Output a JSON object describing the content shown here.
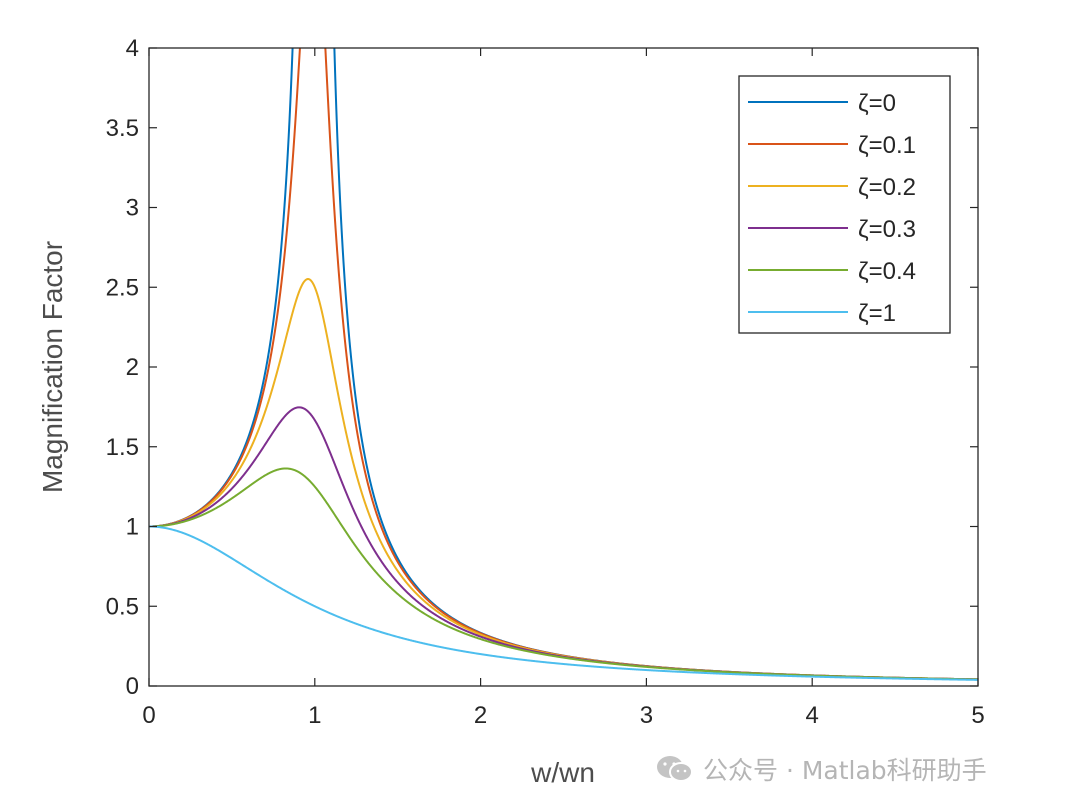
{
  "chart_data": {
    "type": "line",
    "title": "",
    "xlabel": "w/wn",
    "ylabel": "Magnification Factor",
    "xlim": [
      0,
      5
    ],
    "ylim": [
      0,
      4
    ],
    "xticks": [
      "0",
      "1",
      "2",
      "3",
      "4",
      "5"
    ],
    "yticks": [
      "0",
      "0.5",
      "1",
      "1.5",
      "2",
      "2.5",
      "3",
      "3.5",
      "4"
    ],
    "grid": false,
    "legend_position": "top-right",
    "formula": "1/sqrt((1-r^2)^2+(2*zeta*r)^2)",
    "series": [
      {
        "name": "ζ=0",
        "zeta": 0,
        "color": "#0072BD"
      },
      {
        "name": "ζ=0.1",
        "zeta": 0.1,
        "color": "#D95319"
      },
      {
        "name": "ζ=0.2",
        "zeta": 0.2,
        "color": "#EDB120"
      },
      {
        "name": "ζ=0.3",
        "zeta": 0.3,
        "color": "#7E2F8E"
      },
      {
        "name": "ζ=0.4",
        "zeta": 0.4,
        "color": "#77AC30"
      },
      {
        "name": "ζ=1",
        "zeta": 1,
        "color": "#4DBEEE"
      }
    ],
    "peak_values": {
      "ζ=0.2": 2.55,
      "ζ=0.3": 1.75,
      "ζ=0.4": 1.36
    },
    "value_at_zero": 1
  },
  "watermark": {
    "text": "公众号 · Matlab科研助手",
    "icon": "wechat-icon"
  }
}
